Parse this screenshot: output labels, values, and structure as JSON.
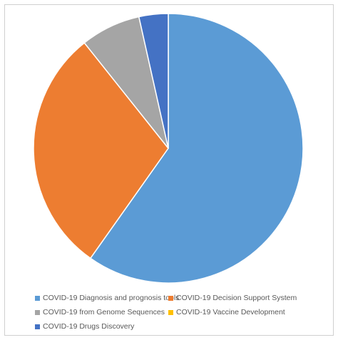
{
  "chart_data": {
    "type": "pie",
    "title": "",
    "start_angle_deg": 0,
    "direction": "clockwise",
    "legend_position": "bottom",
    "slices": [
      {
        "label": "COVID-19 Diagnosis and prognosis tools",
        "value": 59.8,
        "color": "#5b9bd5"
      },
      {
        "label": "COVID-19 Decision Support System",
        "value": 29.5,
        "color": "#ed7d31"
      },
      {
        "label": "COVID-19 from Genome Sequences",
        "value": 7.2,
        "color": "#a5a5a5"
      },
      {
        "label": "COVID-19 Vaccine Development",
        "value": 0.0,
        "color": "#ffc000"
      },
      {
        "label": "COVID-19 Drugs Discovery",
        "value": 3.5,
        "color": "#4472c4"
      }
    ]
  }
}
